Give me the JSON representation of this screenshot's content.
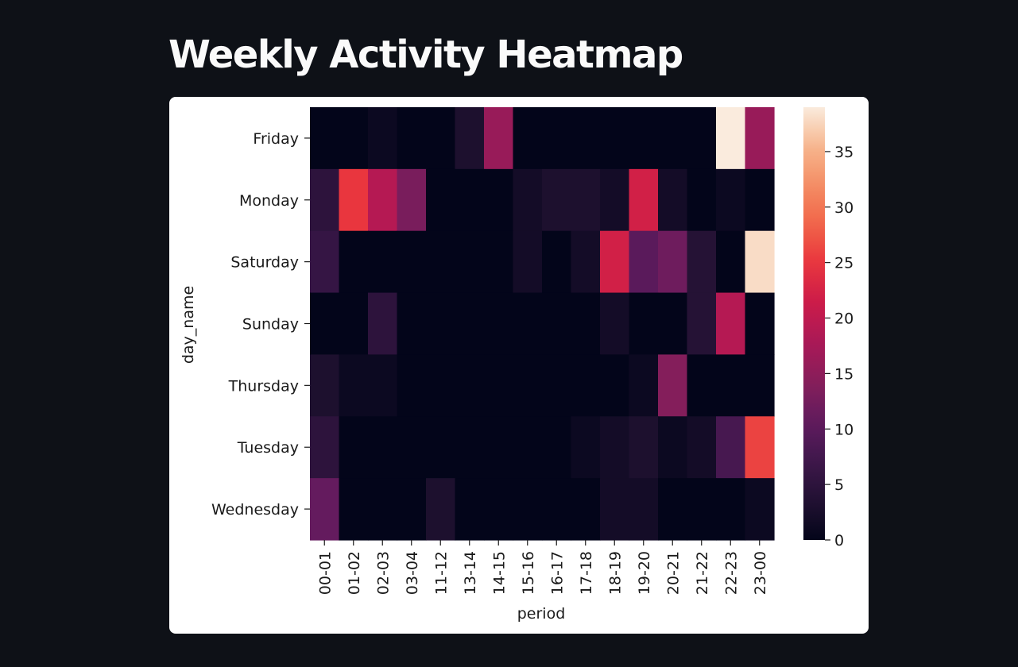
{
  "page": {
    "title": "Weekly Activity Heatmap"
  },
  "chart_data": {
    "type": "heatmap",
    "title": "",
    "xlabel": "period",
    "ylabel": "day_name",
    "x_categories": [
      "00-01",
      "01-02",
      "02-03",
      "03-04",
      "11-12",
      "13-14",
      "14-15",
      "15-16",
      "16-17",
      "17-18",
      "18-19",
      "19-20",
      "20-21",
      "21-22",
      "22-23",
      "23-00"
    ],
    "y_categories": [
      "Friday",
      "Monday",
      "Saturday",
      "Sunday",
      "Thursday",
      "Tuesday",
      "Wednesday"
    ],
    "values": [
      [
        0,
        0,
        1,
        0,
        0,
        3,
        16,
        0,
        0,
        0,
        0,
        0,
        0,
        0,
        39,
        16
      ],
      [
        5,
        25,
        19,
        13,
        0,
        0,
        0,
        2,
        3,
        3,
        2,
        22,
        2,
        0,
        1,
        0
      ],
      [
        6,
        0,
        0,
        0,
        0,
        0,
        0,
        2,
        0,
        2,
        22,
        10,
        12,
        4,
        0,
        38
      ],
      [
        0,
        0,
        5,
        0,
        0,
        0,
        0,
        0,
        0,
        0,
        2,
        0,
        0,
        4,
        19,
        0
      ],
      [
        3,
        1,
        1,
        0,
        0,
        0,
        0,
        0,
        0,
        0,
        0,
        1,
        14,
        0,
        0,
        0
      ],
      [
        5,
        0,
        0,
        0,
        0,
        0,
        0,
        0,
        0,
        1,
        2,
        3,
        1,
        2,
        8,
        26
      ],
      [
        11,
        0,
        0,
        0,
        3,
        0,
        0,
        0,
        0,
        0,
        2,
        2,
        0,
        0,
        0,
        1
      ]
    ],
    "colorbar": {
      "min": 0,
      "max": 39,
      "ticks": [
        0,
        5,
        10,
        15,
        20,
        25,
        30,
        35
      ],
      "colormap": "rocket"
    }
  }
}
